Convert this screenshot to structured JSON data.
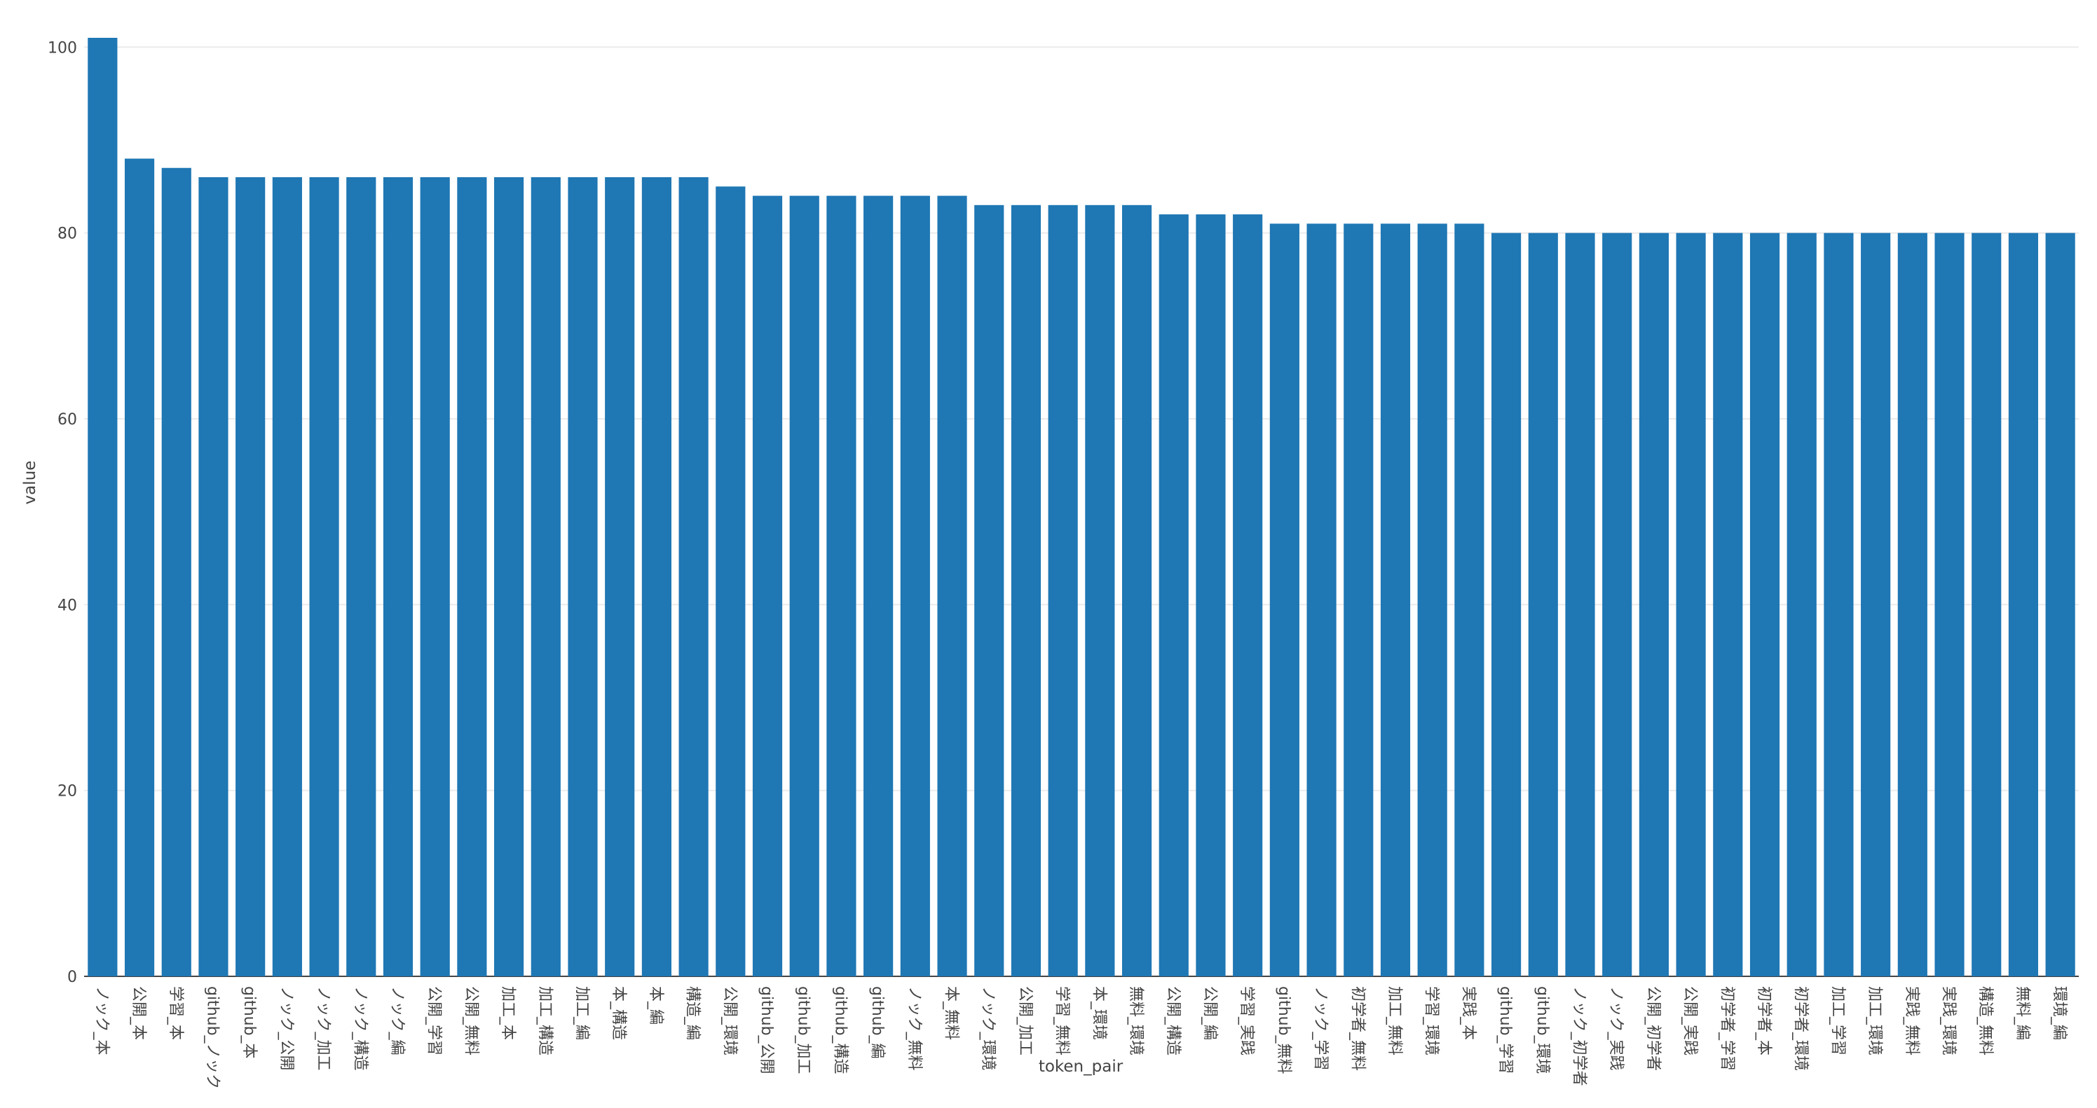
{
  "chart_data": {
    "type": "bar",
    "categories": [
      "ノック_本",
      "公開_本",
      "学習_本",
      "github_ノック",
      "github_本",
      "ノック_公開",
      "ノック_加工",
      "ノック_構造",
      "ノック_編",
      "公開_学習",
      "公開_無料",
      "加工_本",
      "加工_構造",
      "加工_編",
      "本_構造",
      "本_編",
      "構造_編",
      "公開_環境",
      "github_公開",
      "github_加工",
      "github_構造",
      "github_編",
      "ノック_無料",
      "本_無料",
      "ノック_環境",
      "公開_加工",
      "学習_無料",
      "本_環境",
      "無料_環境",
      "公開_構造",
      "公開_編",
      "学習_実践",
      "github_無料",
      "ノック_学習",
      "初学者_無料",
      "加工_無料",
      "学習_環境",
      "実践_本",
      "github_学習",
      "github_環境",
      "ノック_初学者",
      "ノック_実践",
      "公開_初学者",
      "公開_実践",
      "初学者_学習",
      "初学者_本",
      "初学者_環境",
      "加工_学習",
      "加工_環境",
      "実践_無料",
      "実践_環境",
      "構造_無料",
      "無料_編",
      "環境_編"
    ],
    "values": [
      101,
      88,
      87,
      86,
      86,
      86,
      86,
      86,
      86,
      86,
      86,
      86,
      86,
      86,
      86,
      86,
      86,
      85,
      84,
      84,
      84,
      84,
      84,
      84,
      83,
      83,
      83,
      83,
      83,
      82,
      82,
      82,
      81,
      81,
      81,
      81,
      81,
      81,
      80,
      80,
      80,
      80,
      80,
      80,
      80,
      80,
      80,
      80,
      80,
      80,
      80,
      80,
      80,
      80
    ],
    "title": "",
    "xlabel": "token_pair",
    "ylabel": "value",
    "ylim": [
      0,
      101
    ],
    "yticks": [
      0,
      20,
      40,
      60,
      80,
      100
    ],
    "grid": true,
    "legend": "none",
    "bar_color": "#1f77b4"
  }
}
